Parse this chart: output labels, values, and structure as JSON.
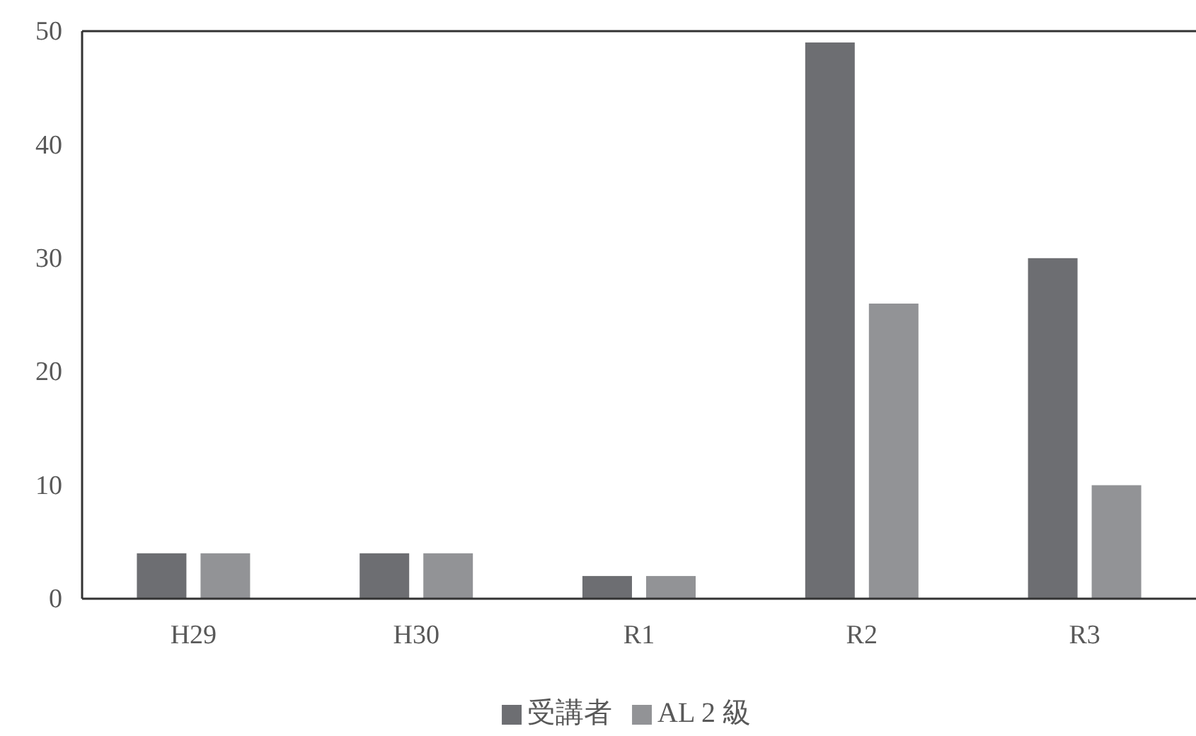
{
  "chart_data": {
    "type": "bar",
    "categories": [
      "H29",
      "H30",
      "R1",
      "R2",
      "R3"
    ],
    "series": [
      {
        "name": "受講者",
        "color": "#6d6e72",
        "values": [
          4,
          4,
          2,
          49,
          30
        ]
      },
      {
        "name": "AL 2 級",
        "color": "#929396",
        "values": [
          4,
          4,
          2,
          26,
          10
        ]
      }
    ],
    "ylim": [
      0,
      50
    ],
    "yticks": [
      0,
      10,
      20,
      30,
      40,
      50
    ],
    "grid": false,
    "legend": "bottom"
  }
}
